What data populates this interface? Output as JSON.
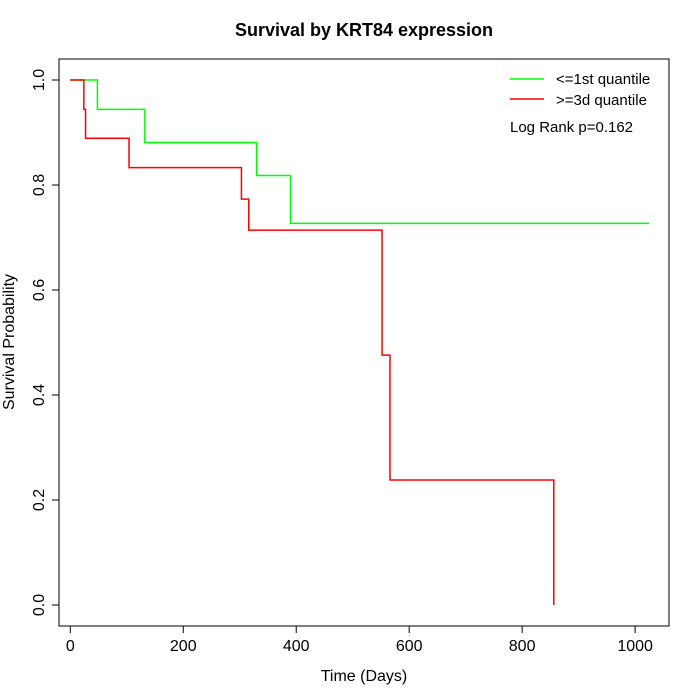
{
  "chart_data": {
    "type": "line",
    "step": true,
    "title": "Survival by KRT84 expression",
    "xlabel": "Time (Days)",
    "ylabel": "Survival Probability",
    "xlim": [
      -20,
      1060
    ],
    "ylim": [
      -0.04,
      1.04
    ],
    "xticks": [
      0,
      200,
      400,
      600,
      800,
      1000
    ],
    "yticks": [
      0.0,
      0.2,
      0.4,
      0.6,
      0.8,
      1.0
    ],
    "xtick_labels": [
      "0",
      "200",
      "400",
      "600",
      "800",
      "1000"
    ],
    "ytick_labels": [
      "0.0",
      "0.2",
      "0.4",
      "0.6",
      "0.8",
      "1.0"
    ],
    "grid": false,
    "legend_position": "top-right",
    "annotation": "Log Rank p=0.162",
    "series": [
      {
        "name": "<=1st quantile",
        "color": "#00ff00",
        "x": [
          0,
          48,
          132,
          330,
          390,
          1025
        ],
        "y": [
          1.0,
          0.944,
          0.881,
          0.818,
          0.727,
          0.727
        ]
      },
      {
        "name": ">=3d quantile",
        "color": "#ff0000",
        "x": [
          0,
          24,
          27,
          104,
          303,
          316,
          552,
          566,
          856
        ],
        "y": [
          1.0,
          0.944,
          0.889,
          0.833,
          0.773,
          0.714,
          0.476,
          0.238,
          0.0
        ]
      }
    ]
  }
}
